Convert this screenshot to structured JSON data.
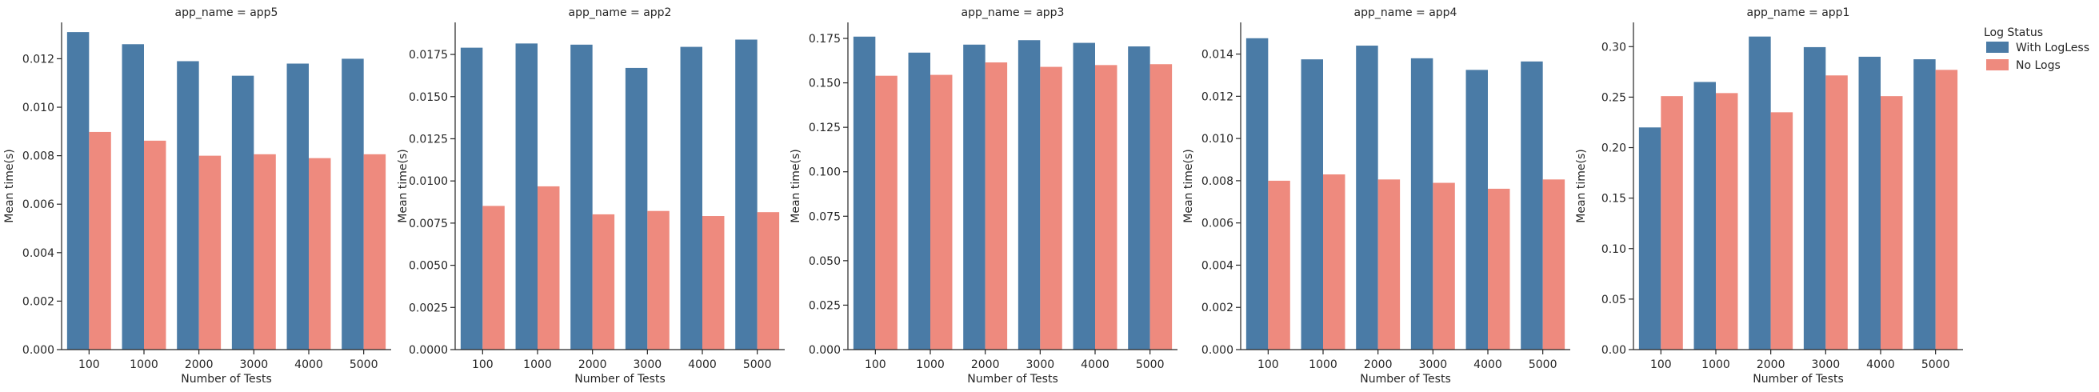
{
  "legend": {
    "title": "Log Status",
    "placement": "right",
    "entries": [
      {
        "label": "With LogLess",
        "color": "#4a7ba6"
      },
      {
        "label": "No Logs",
        "color": "#ee8a7e"
      }
    ]
  },
  "chart_data": [
    {
      "type": "bar",
      "title": "app_name = app5",
      "xlabel": "Number of Tests",
      "ylabel": "Mean time(s)",
      "categories": [
        "100",
        "1000",
        "2000",
        "3000",
        "4000",
        "5000"
      ],
      "ylim": [
        0,
        0.0135
      ],
      "yticks": [
        0.0,
        0.002,
        0.004,
        0.006,
        0.008,
        0.01,
        0.012
      ],
      "ytick_labels": [
        "0.000",
        "0.002",
        "0.004",
        "0.006",
        "0.008",
        "0.010",
        "0.012"
      ],
      "series": [
        {
          "name": "With LogLess",
          "values": [
            0.0131,
            0.0126,
            0.0119,
            0.0113,
            0.0118,
            0.012
          ]
        },
        {
          "name": "No Logs",
          "values": [
            0.00898,
            0.00862,
            0.008,
            0.00806,
            0.0079,
            0.00806
          ]
        }
      ]
    },
    {
      "type": "bar",
      "title": "app_name = app2",
      "xlabel": "Number of Tests",
      "ylabel": "Mean time(s)",
      "categories": [
        "100",
        "1000",
        "2000",
        "3000",
        "4000",
        "5000"
      ],
      "ylim": [
        0,
        0.0194
      ],
      "yticks": [
        0.0,
        0.0025,
        0.005,
        0.0075,
        0.01,
        0.0125,
        0.015,
        0.0175
      ],
      "ytick_labels": [
        "0.0000",
        "0.0025",
        "0.0050",
        "0.0075",
        "0.0100",
        "0.0125",
        "0.0150",
        "0.0175"
      ],
      "series": [
        {
          "name": "With LogLess",
          "values": [
            0.0179,
            0.01815,
            0.01808,
            0.0167,
            0.01795,
            0.01838
          ]
        },
        {
          "name": "No Logs",
          "values": [
            0.00852,
            0.00968,
            0.00802,
            0.00822,
            0.00792,
            0.00815
          ]
        }
      ]
    },
    {
      "type": "bar",
      "title": "app_name = app3",
      "xlabel": "Number of Tests",
      "ylabel": "Mean time(s)",
      "categories": [
        "100",
        "1000",
        "2000",
        "3000",
        "4000",
        "5000"
      ],
      "ylim": [
        0,
        0.184
      ],
      "yticks": [
        0.0,
        0.025,
        0.05,
        0.075,
        0.1,
        0.125,
        0.15,
        0.175
      ],
      "ytick_labels": [
        "0.000",
        "0.025",
        "0.050",
        "0.075",
        "0.100",
        "0.125",
        "0.150",
        "0.175"
      ],
      "series": [
        {
          "name": "With LogLess",
          "values": [
            0.176,
            0.167,
            0.1715,
            0.174,
            0.1725,
            0.1705
          ]
        },
        {
          "name": "No Logs",
          "values": [
            0.154,
            0.1545,
            0.1615,
            0.159,
            0.16,
            0.1605
          ]
        }
      ]
    },
    {
      "type": "bar",
      "title": "app_name = app4",
      "xlabel": "Number of Tests",
      "ylabel": "Mean time(s)",
      "categories": [
        "100",
        "1000",
        "2000",
        "3000",
        "4000",
        "5000"
      ],
      "ylim": [
        0,
        0.0155
      ],
      "yticks": [
        0.0,
        0.002,
        0.004,
        0.006,
        0.008,
        0.01,
        0.012,
        0.014
      ],
      "ytick_labels": [
        "0.000",
        "0.002",
        "0.004",
        "0.006",
        "0.008",
        "0.010",
        "0.012",
        "0.014"
      ],
      "series": [
        {
          "name": "With LogLess",
          "values": [
            0.01475,
            0.01375,
            0.0144,
            0.0138,
            0.01325,
            0.01365
          ]
        },
        {
          "name": "No Logs",
          "values": [
            0.008,
            0.0083,
            0.00806,
            0.0079,
            0.00762,
            0.00806
          ]
        }
      ]
    },
    {
      "type": "bar",
      "title": "app_name = app1",
      "xlabel": "Number of Tests",
      "ylabel": "Mean time(s)",
      "categories": [
        "100",
        "1000",
        "2000",
        "3000",
        "4000",
        "5000"
      ],
      "ylim": [
        0,
        0.324
      ],
      "yticks": [
        0.0,
        0.05,
        0.1,
        0.15,
        0.2,
        0.25,
        0.3
      ],
      "ytick_labels": [
        "0.00",
        "0.05",
        "0.10",
        "0.15",
        "0.20",
        "0.25",
        "0.30"
      ],
      "series": [
        {
          "name": "With LogLess",
          "values": [
            0.22,
            0.265,
            0.31,
            0.2995,
            0.29,
            0.2875
          ]
        },
        {
          "name": "No Logs",
          "values": [
            0.251,
            0.254,
            0.235,
            0.2715,
            0.251,
            0.277
          ]
        }
      ]
    }
  ]
}
